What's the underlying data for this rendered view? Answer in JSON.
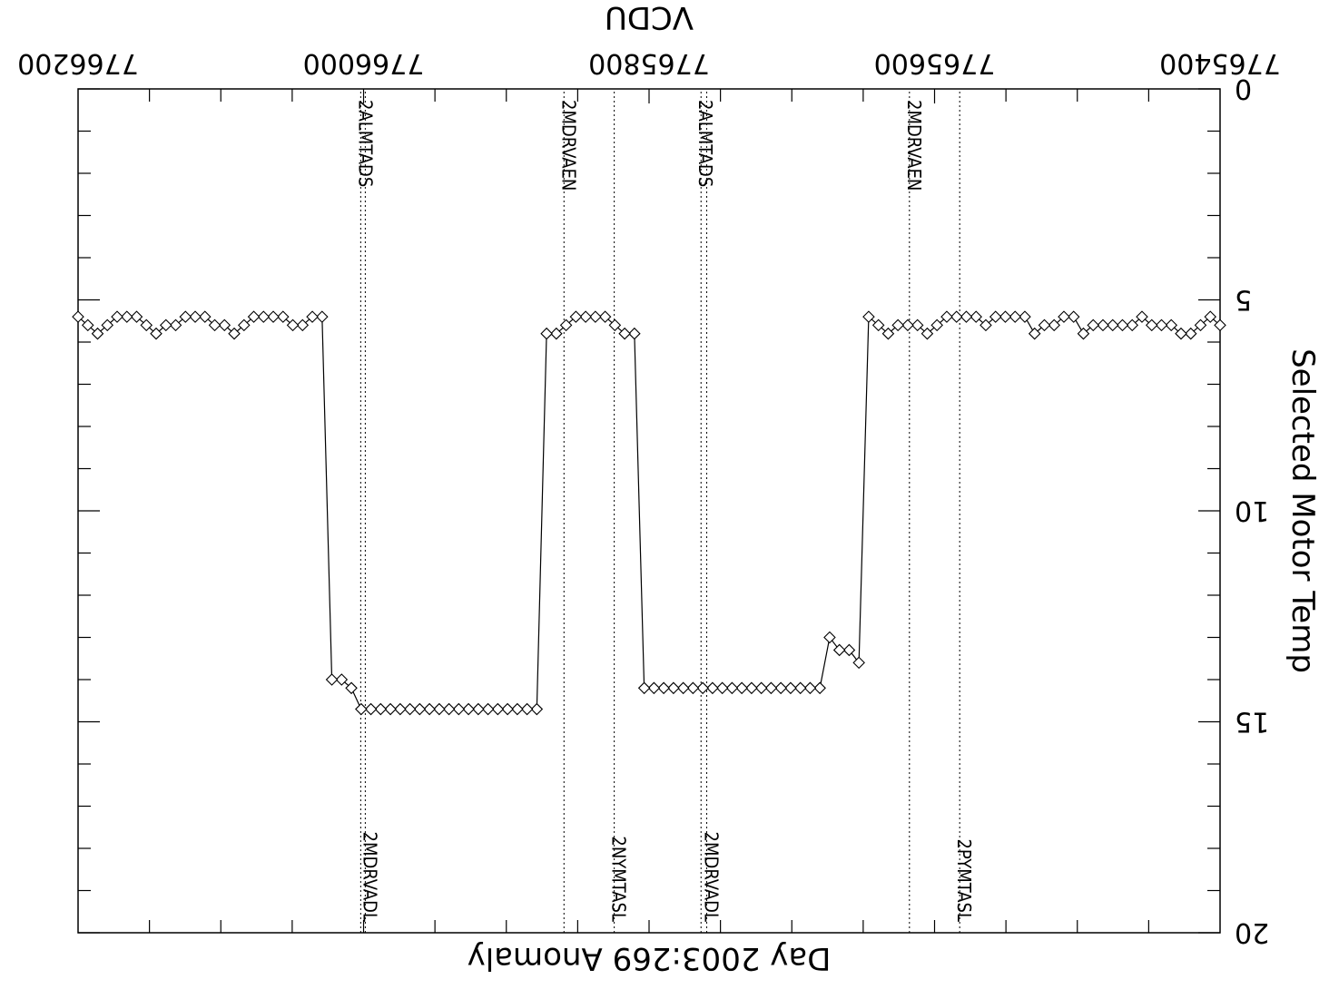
{
  "chart_data": {
    "type": "line",
    "title": "",
    "xlabel": "Day 2003:269 Anomaly",
    "ylabel": "Selected Motor Temp",
    "x2label": "VCDU",
    "x2_ticks": [
      "7765400",
      "7765600",
      "7765800",
      "7766000",
      "7766200"
    ],
    "ylim": [
      0,
      20
    ],
    "yticks": [
      0,
      5,
      10,
      15,
      20
    ],
    "marker": "diamond",
    "series": [
      {
        "values": [
          5.6,
          5.4,
          5.6,
          5.8,
          5.8,
          5.6,
          5.6,
          5.6,
          5.4,
          5.6,
          5.6,
          5.6,
          5.6,
          5.6,
          5.8,
          5.4,
          5.4,
          5.6,
          5.6,
          5.8,
          5.4,
          5.4,
          5.4,
          5.4,
          5.6,
          5.4,
          5.4,
          5.4,
          5.4,
          5.6,
          5.8,
          5.6,
          5.6,
          5.6,
          5.8,
          5.6,
          5.4,
          13.6,
          13.3,
          13.3,
          13.0,
          14.2,
          14.2,
          14.2,
          14.2,
          14.2,
          14.2,
          14.2,
          14.2,
          14.2,
          14.2,
          14.2,
          14.2,
          14.2,
          14.2,
          14.2,
          14.2,
          14.2,
          14.2,
          14.2,
          5.8,
          5.8,
          5.6,
          5.4,
          5.4,
          5.4,
          5.4,
          5.6,
          5.8,
          5.8,
          14.7,
          14.7,
          14.7,
          14.7,
          14.7,
          14.7,
          14.7,
          14.7,
          14.7,
          14.7,
          14.7,
          14.7,
          14.7,
          14.7,
          14.7,
          14.7,
          14.7,
          14.7,
          14.7,
          14.2,
          14.0,
          14.0,
          5.4,
          5.4,
          5.6,
          5.6,
          5.4,
          5.4,
          5.4,
          5.4,
          5.6,
          5.8,
          5.6,
          5.6,
          5.4,
          5.4,
          5.4,
          5.6,
          5.6,
          5.8,
          5.6,
          5.4,
          5.4,
          5.4,
          5.6,
          5.8,
          5.6,
          5.4
        ]
      }
    ],
    "events": [
      {
        "label": "2PYMTASL",
        "pos": 0.228,
        "side": "top"
      },
      {
        "label": "2MDRVAEN",
        "pos": 0.272,
        "side": "bottom"
      },
      {
        "label": "2MDRVADL",
        "pos": 0.4495,
        "side": "top"
      },
      {
        "label": "2ALMTADS",
        "pos": 0.4545,
        "side": "bottom"
      },
      {
        "label": "2NYMTASL",
        "pos": 0.5305,
        "side": "top"
      },
      {
        "label": "2MDRVAEN",
        "pos": 0.5745,
        "side": "bottom"
      },
      {
        "label": "2MDRVADL",
        "pos": 0.7485,
        "side": "top"
      },
      {
        "label": "2ALMTADS",
        "pos": 0.7525,
        "side": "bottom"
      }
    ],
    "grid": false,
    "rendering": "figure rotated 180 degrees"
  }
}
